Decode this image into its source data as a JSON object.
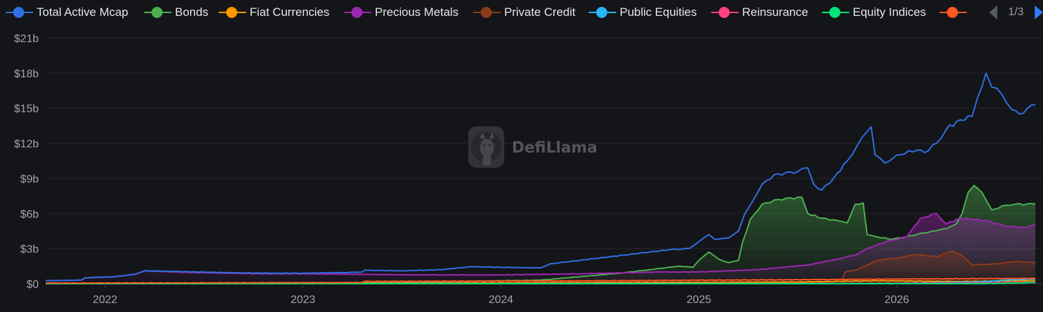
{
  "legend": {
    "items": [
      {
        "label": "Total Active Mcap",
        "color": "#2f6fe4"
      },
      {
        "label": "Bonds",
        "color": "#4caf50"
      },
      {
        "label": "Fiat Currencies",
        "color": "#ff9800"
      },
      {
        "label": "Precious Metals",
        "color": "#9c27b0"
      },
      {
        "label": "Private Credit",
        "color": "#8b3a1a"
      },
      {
        "label": "Public Equities",
        "color": "#29b6f6"
      },
      {
        "label": "Reinsurance",
        "color": "#ff4081"
      },
      {
        "label": "Equity Indices",
        "color": "#00e676"
      },
      {
        "label": "",
        "color": "#ff5722"
      }
    ],
    "pager": {
      "text": "1/3",
      "prev_icon": "chevron-left-icon",
      "next_icon": "chevron-right-icon"
    }
  },
  "watermark": {
    "text": "DefiLlama",
    "icon": "llama-logo-icon"
  },
  "chart_data": {
    "type": "area",
    "title": "",
    "xlabel": "",
    "ylabel": "",
    "x_ticks": [
      "2022",
      "2023",
      "2024",
      "2025",
      "2026"
    ],
    "y_ticks": [
      "$0",
      "$3b",
      "$6b",
      "$9b",
      "$12b",
      "$15b",
      "$18b",
      "$21b"
    ],
    "ylim": [
      0,
      21
    ],
    "y_unit": "billion USD",
    "xlim": [
      2021.7,
      2026.7
    ],
    "grid": true,
    "legend_position": "top",
    "series": [
      {
        "name": "Total Active Mcap",
        "color": "#2f6fe4",
        "fill": false,
        "points": [
          [
            2021.7,
            0.25
          ],
          [
            2021.88,
            0.3
          ],
          [
            2021.9,
            0.5
          ],
          [
            2022.05,
            0.6
          ],
          [
            2022.15,
            0.8
          ],
          [
            2022.2,
            1.1
          ],
          [
            2022.35,
            1.05
          ],
          [
            2022.6,
            0.95
          ],
          [
            2022.8,
            0.9
          ],
          [
            2023.0,
            0.9
          ],
          [
            2023.2,
            0.95
          ],
          [
            2023.3,
            1.0
          ],
          [
            2023.31,
            1.15
          ],
          [
            2023.5,
            1.1
          ],
          [
            2023.7,
            1.2
          ],
          [
            2023.85,
            1.45
          ],
          [
            2024.0,
            1.4
          ],
          [
            2024.2,
            1.35
          ],
          [
            2024.25,
            1.7
          ],
          [
            2024.4,
            2.0
          ],
          [
            2024.55,
            2.3
          ],
          [
            2024.7,
            2.6
          ],
          [
            2024.85,
            2.9
          ],
          [
            2024.95,
            3.0
          ],
          [
            2025.0,
            3.6
          ],
          [
            2025.05,
            4.2
          ],
          [
            2025.08,
            3.8
          ],
          [
            2025.15,
            3.9
          ],
          [
            2025.2,
            4.5
          ],
          [
            2025.23,
            5.9
          ],
          [
            2025.27,
            7.0
          ],
          [
            2025.32,
            8.5
          ],
          [
            2025.38,
            9.3
          ],
          [
            2025.5,
            9.6
          ],
          [
            2025.55,
            9.9
          ],
          [
            2025.58,
            8.5
          ],
          [
            2025.62,
            8.0
          ],
          [
            2025.68,
            9.0
          ],
          [
            2025.75,
            10.5
          ],
          [
            2025.8,
            11.8
          ],
          [
            2025.85,
            13.0
          ],
          [
            2025.87,
            13.4
          ],
          [
            2025.89,
            11.0
          ],
          [
            2025.94,
            10.3
          ],
          [
            2026.0,
            11.0
          ],
          [
            2026.1,
            11.4
          ],
          [
            2026.14,
            11.2
          ],
          [
            2026.2,
            12.0
          ],
          [
            2026.25,
            13.2
          ],
          [
            2026.32,
            14.0
          ],
          [
            2026.38,
            14.3
          ],
          [
            2026.41,
            16.0
          ],
          [
            2026.45,
            18.0
          ],
          [
            2026.48,
            16.8
          ],
          [
            2026.53,
            16.2
          ],
          [
            2026.58,
            14.9
          ],
          [
            2026.62,
            14.5
          ],
          [
            2026.66,
            15.0
          ],
          [
            2026.7,
            15.3
          ]
        ]
      },
      {
        "name": "Bonds",
        "color": "#4caf50",
        "fill": true,
        "points": [
          [
            2021.7,
            0.0
          ],
          [
            2023.5,
            0.1
          ],
          [
            2023.8,
            0.2
          ],
          [
            2024.2,
            0.3
          ],
          [
            2024.4,
            0.6
          ],
          [
            2024.6,
            0.9
          ],
          [
            2024.75,
            1.2
          ],
          [
            2024.9,
            1.5
          ],
          [
            2024.97,
            1.4
          ],
          [
            2025.0,
            2.0
          ],
          [
            2025.05,
            2.7
          ],
          [
            2025.1,
            2.1
          ],
          [
            2025.15,
            1.8
          ],
          [
            2025.2,
            2.0
          ],
          [
            2025.22,
            3.5
          ],
          [
            2025.26,
            5.5
          ],
          [
            2025.32,
            6.8
          ],
          [
            2025.4,
            7.2
          ],
          [
            2025.52,
            7.4
          ],
          [
            2025.55,
            6.0
          ],
          [
            2025.62,
            5.6
          ],
          [
            2025.7,
            5.4
          ],
          [
            2025.75,
            5.2
          ],
          [
            2025.79,
            6.8
          ],
          [
            2025.83,
            6.9
          ],
          [
            2025.85,
            4.2
          ],
          [
            2025.9,
            4.0
          ],
          [
            2025.96,
            3.8
          ],
          [
            2026.02,
            3.9
          ],
          [
            2026.1,
            4.2
          ],
          [
            2026.18,
            4.5
          ],
          [
            2026.25,
            4.7
          ],
          [
            2026.3,
            5.1
          ],
          [
            2026.33,
            6.0
          ],
          [
            2026.36,
            7.8
          ],
          [
            2026.39,
            8.4
          ],
          [
            2026.43,
            7.8
          ],
          [
            2026.48,
            6.3
          ],
          [
            2026.55,
            6.7
          ],
          [
            2026.6,
            6.8
          ],
          [
            2026.7,
            6.8
          ]
        ]
      },
      {
        "name": "Precious Metals",
        "color": "#9c27b0",
        "fill": true,
        "points": [
          [
            2021.7,
            0.25
          ],
          [
            2021.88,
            0.3
          ],
          [
            2021.9,
            0.5
          ],
          [
            2022.05,
            0.6
          ],
          [
            2022.15,
            0.8
          ],
          [
            2022.2,
            1.1
          ],
          [
            2022.35,
            1.0
          ],
          [
            2022.6,
            0.9
          ],
          [
            2022.8,
            0.85
          ],
          [
            2023.0,
            0.85
          ],
          [
            2023.3,
            0.8
          ],
          [
            2023.6,
            0.75
          ],
          [
            2024.0,
            0.75
          ],
          [
            2024.4,
            0.85
          ],
          [
            2024.8,
            1.0
          ],
          [
            2025.0,
            1.0
          ],
          [
            2025.3,
            1.2
          ],
          [
            2025.55,
            1.6
          ],
          [
            2025.7,
            2.1
          ],
          [
            2025.8,
            2.5
          ],
          [
            2025.85,
            3.0
          ],
          [
            2025.95,
            3.6
          ],
          [
            2026.05,
            4.0
          ],
          [
            2026.12,
            5.6
          ],
          [
            2026.2,
            6.0
          ],
          [
            2026.25,
            5.1
          ],
          [
            2026.32,
            5.6
          ],
          [
            2026.45,
            5.4
          ],
          [
            2026.55,
            4.9
          ],
          [
            2026.65,
            4.8
          ],
          [
            2026.7,
            5.1
          ]
        ]
      },
      {
        "name": "Private Credit",
        "color": "#8b3a1a",
        "fill": true,
        "points": [
          [
            2021.7,
            0.0
          ],
          [
            2025.5,
            0.1
          ],
          [
            2025.72,
            0.2
          ],
          [
            2025.74,
            1.0
          ],
          [
            2025.8,
            1.2
          ],
          [
            2025.9,
            2.0
          ],
          [
            2026.0,
            2.2
          ],
          [
            2026.1,
            2.5
          ],
          [
            2026.2,
            2.3
          ],
          [
            2026.28,
            2.8
          ],
          [
            2026.33,
            2.4
          ],
          [
            2026.38,
            1.6
          ],
          [
            2026.5,
            1.7
          ],
          [
            2026.6,
            1.9
          ],
          [
            2026.7,
            1.8
          ]
        ]
      },
      {
        "name": "Fiat Currencies",
        "color": "#ff9800",
        "fill": false,
        "points": [
          [
            2021.7,
            0.02
          ],
          [
            2023.3,
            0.05
          ],
          [
            2024.5,
            0.1
          ],
          [
            2025.5,
            0.15
          ],
          [
            2025.9,
            0.25
          ],
          [
            2026.3,
            0.2
          ],
          [
            2026.7,
            0.25
          ]
        ]
      },
      {
        "name": "Public Equities",
        "color": "#29b6f6",
        "fill": false,
        "points": [
          [
            2021.7,
            0.0
          ],
          [
            2025.8,
            0.0
          ],
          [
            2026.0,
            0.05
          ],
          [
            2026.4,
            0.15
          ],
          [
            2026.55,
            0.3
          ],
          [
            2026.7,
            0.4
          ]
        ]
      },
      {
        "name": "Reinsurance",
        "color": "#ff4081",
        "fill": false,
        "points": [
          [
            2021.7,
            0.0
          ],
          [
            2025.7,
            0.02
          ],
          [
            2026.0,
            0.05
          ],
          [
            2026.7,
            0.1
          ]
        ]
      },
      {
        "name": "Equity Indices",
        "color": "#00e676",
        "fill": false,
        "points": [
          [
            2021.7,
            0.0
          ],
          [
            2026.4,
            0.0
          ],
          [
            2026.6,
            0.05
          ],
          [
            2026.7,
            0.1
          ]
        ]
      },
      {
        "name": "",
        "color": "#ff5722",
        "fill": false,
        "points": [
          [
            2021.7,
            0.05
          ],
          [
            2023.3,
            0.1
          ],
          [
            2023.31,
            0.2
          ],
          [
            2024.5,
            0.25
          ],
          [
            2025.0,
            0.3
          ],
          [
            2025.6,
            0.35
          ],
          [
            2026.0,
            0.4
          ],
          [
            2026.7,
            0.45
          ]
        ]
      }
    ]
  }
}
